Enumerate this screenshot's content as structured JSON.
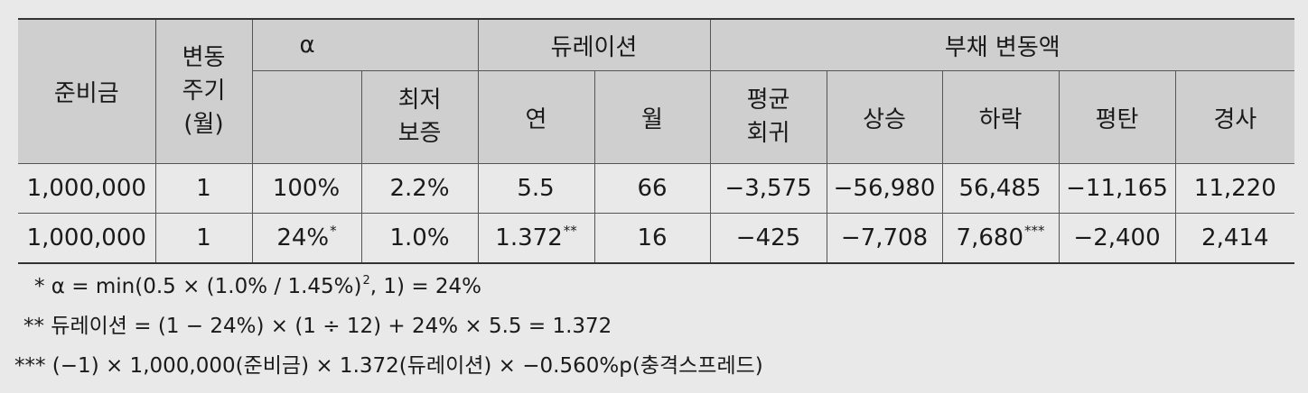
{
  "header": {
    "reserve": "준비금",
    "cycle": [
      "변동",
      "주기",
      "(월)"
    ],
    "alpha": "α",
    "min_guarantee": [
      "최저",
      "보증"
    ],
    "duration": "듀레이션",
    "year": "연",
    "month": "월",
    "liability_change": "부채 변동액",
    "mean_reversion": [
      "평균",
      "회귀"
    ],
    "up": "상승",
    "down": "하락",
    "flat": "평탄",
    "steep": "경사"
  },
  "rows": [
    {
      "reserve": "1,000,000",
      "cycle": "1",
      "alpha": "100%",
      "alpha_mark": "",
      "min_guarantee": "2.2%",
      "year": "5.5",
      "year_mark": "",
      "month": "66",
      "mean_reversion": "−3,575",
      "up": "−56,980",
      "down": "56,485",
      "down_mark": "",
      "flat": "−11,165",
      "steep": "11,220"
    },
    {
      "reserve": "1,000,000",
      "cycle": "1",
      "alpha": "24%",
      "alpha_mark": "*",
      "min_guarantee": "1.0%",
      "year": "1.372",
      "year_mark": "**",
      "month": "16",
      "mean_reversion": "−425",
      "up": "−7,708",
      "down": "7,680",
      "down_mark": "***",
      "flat": "−2,400",
      "steep": "2,414"
    }
  ],
  "notes": {
    "n1_a": "* α = min(0.5 × (1.0% / 1.45%)",
    "n1_sup": "2",
    "n1_b": ", 1) = 24%",
    "n2": "** 듀레이션 = (1 − 24%) × (1 ÷ 12) + 24% × 5.5 = 1.372",
    "n3": "*** (−1) × 1,000,000(준비금) × 1.372(듀레이션) × −0.560%p(충격스프레드)"
  }
}
